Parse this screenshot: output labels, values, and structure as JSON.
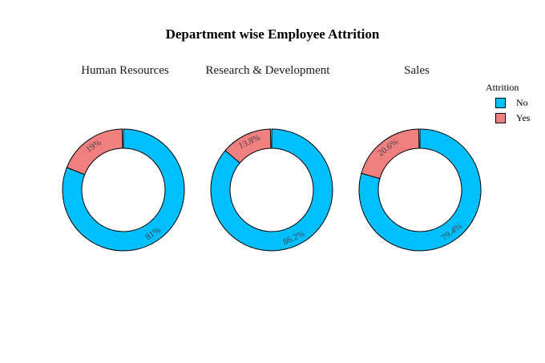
{
  "title": "Department wise Employee Attrition",
  "legend": {
    "title": "Attrition",
    "entries": [
      {
        "label": "No",
        "color": "#00BFFF"
      },
      {
        "label": "Yes",
        "color": "#F08080"
      }
    ]
  },
  "chart_data": [
    {
      "type": "pie",
      "title": "Human Resources",
      "donut": true,
      "legend_title": "Attrition",
      "slices": [
        {
          "label": "No",
          "value": 81,
          "display": "81%",
          "color": "#00BFFF"
        },
        {
          "label": "Yes",
          "value": 19,
          "display": "19%",
          "color": "#F08080"
        }
      ]
    },
    {
      "type": "pie",
      "title": "Research & Development",
      "donut": true,
      "legend_title": "Attrition",
      "slices": [
        {
          "label": "No",
          "value": 86.2,
          "display": "86.2%",
          "color": "#00BFFF"
        },
        {
          "label": "Yes",
          "value": 13.8,
          "display": "13.8%",
          "color": "#F08080"
        }
      ]
    },
    {
      "type": "pie",
      "title": "Sales",
      "donut": true,
      "legend_title": "Attrition",
      "slices": [
        {
          "label": "No",
          "value": 79.4,
          "display": "79.4%",
          "color": "#00BFFF"
        },
        {
          "label": "Yes",
          "value": 20.6,
          "display": "20.6%",
          "color": "#F08080"
        }
      ]
    }
  ]
}
